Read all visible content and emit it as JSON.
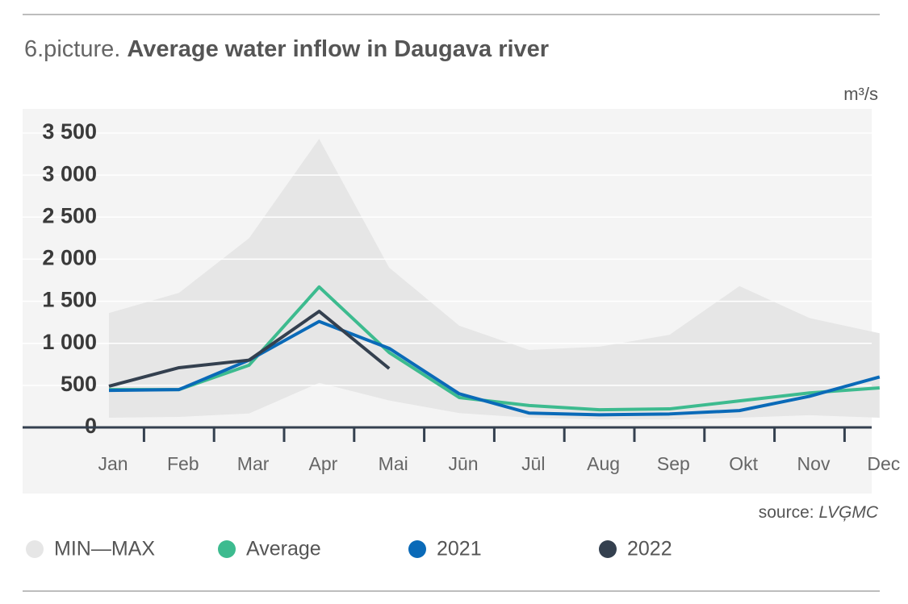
{
  "chart_data": {
    "type": "line",
    "title_prefix": "6.picture.",
    "title": "Average water inflow in Daugava river",
    "y_unit": "m³/s",
    "source_label": "source:",
    "source_name": "LVĢMC",
    "categories": [
      "Jan",
      "Feb",
      "Mar",
      "Apr",
      "Mai",
      "Jūn",
      "Jūl",
      "Aug",
      "Sep",
      "Okt",
      "Nov",
      "Dec"
    ],
    "band": {
      "name": "MIN—MAX",
      "color": "#e6e6e6",
      "min": [
        115,
        125,
        165,
        530,
        320,
        170,
        115,
        95,
        95,
        115,
        145,
        115
      ],
      "max": [
        1360,
        1600,
        2250,
        3430,
        1900,
        1210,
        920,
        960,
        1100,
        1680,
        1300,
        1120
      ]
    },
    "series": [
      {
        "name": "Average",
        "color": "#3dbb8f",
        "values": [
          450,
          450,
          740,
          1670,
          890,
          355,
          260,
          210,
          220,
          315,
          410,
          470
        ]
      },
      {
        "name": "2021",
        "color": "#0a6ab8",
        "values": [
          440,
          450,
          800,
          1260,
          940,
          400,
          170,
          150,
          160,
          200,
          370,
          600
        ]
      },
      {
        "name": "2022",
        "color": "#34404f",
        "values": [
          490,
          710,
          800,
          1380,
          700,
          null,
          null,
          null,
          null,
          null,
          null,
          null
        ]
      }
    ],
    "ylim": [
      0,
      3500
    ],
    "yticks": [
      0,
      500,
      {
        "value": 1000,
        "label": "1 000"
      },
      {
        "value": 1500,
        "label": "1 500"
      },
      {
        "value": 2000,
        "label": "2 000"
      },
      {
        "value": 2500,
        "label": "2 500"
      },
      {
        "value": 3000,
        "label": "3 000"
      },
      {
        "value": 3500,
        "label": "3 500"
      }
    ],
    "grid": true
  }
}
